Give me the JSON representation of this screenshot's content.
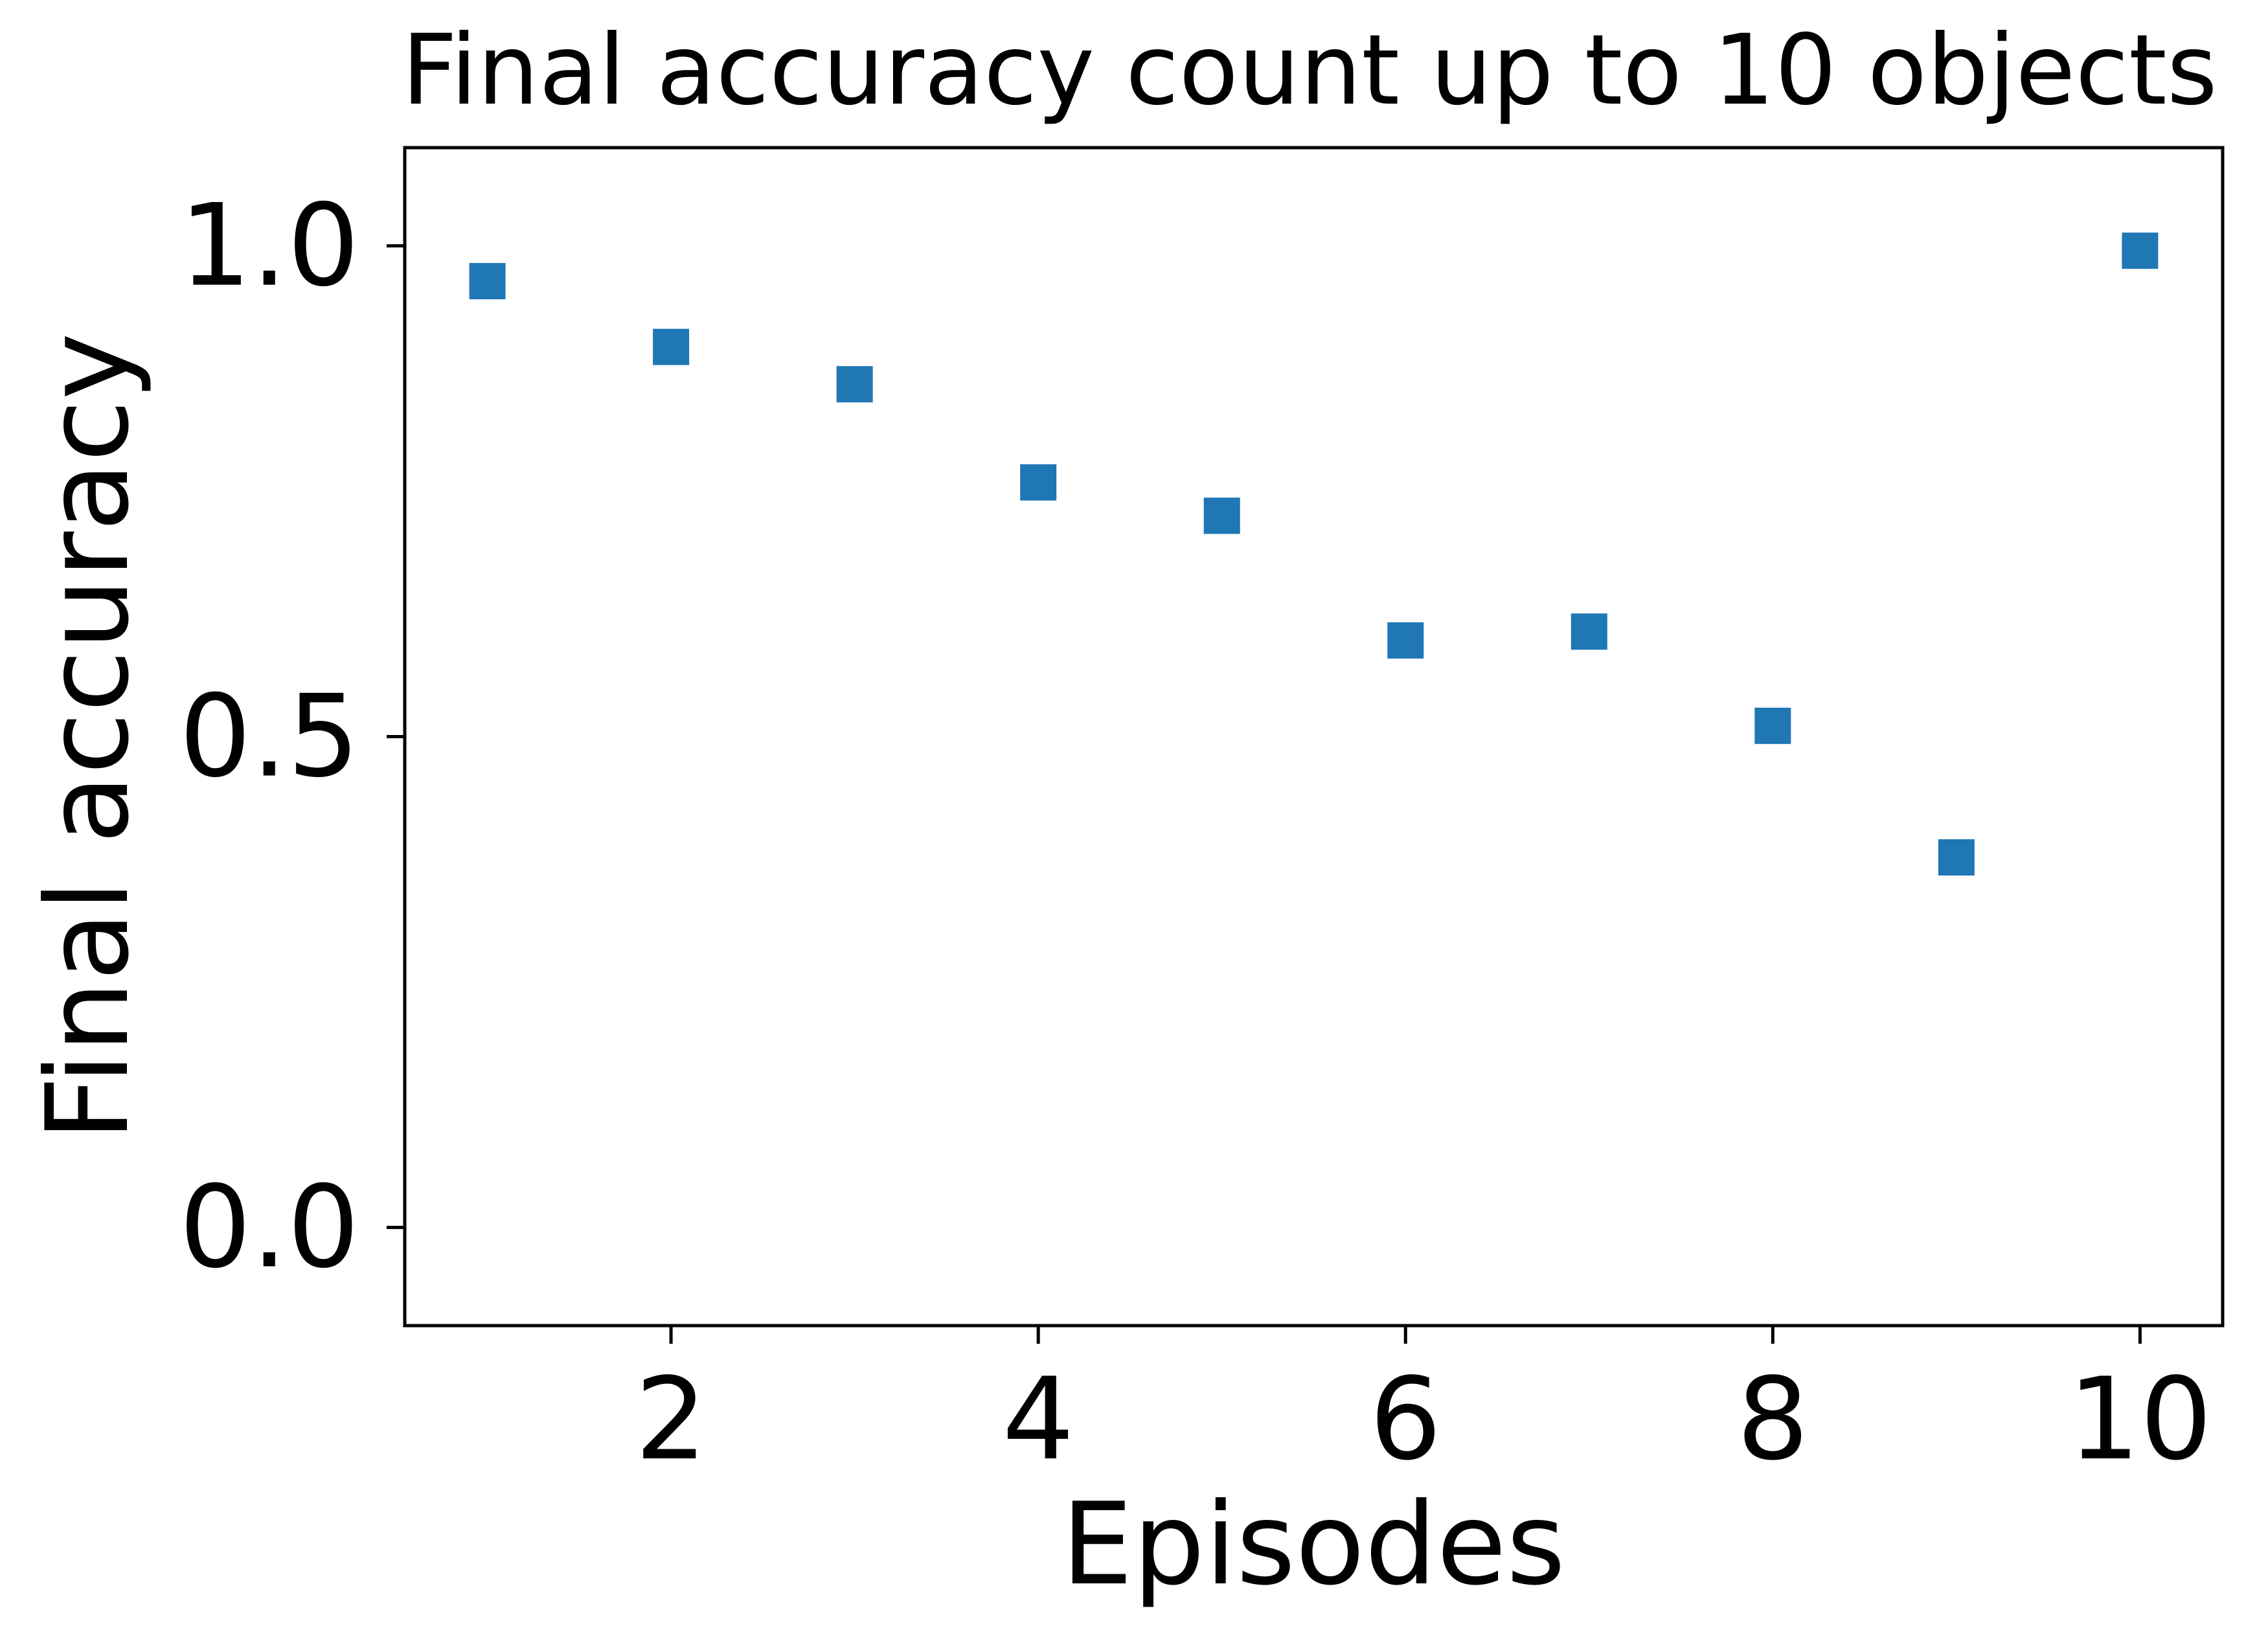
{
  "chart_data": {
    "type": "scatter",
    "title": "Final accuracy count up to 10 objects",
    "xlabel": "Episodes",
    "ylabel": "Final accuracy",
    "xlim": [
      0.55,
      10.45
    ],
    "ylim": [
      -0.1,
      1.1
    ],
    "xticks": [
      2,
      4,
      6,
      8,
      10
    ],
    "yticks": [
      0.0,
      0.5,
      1.0
    ],
    "xtick_labels": [
      "2",
      "4",
      "6",
      "8",
      "10"
    ],
    "ytick_labels": [
      "0.0",
      "0.5",
      "1.0"
    ],
    "grid": false,
    "marker": "square",
    "series": [
      {
        "color": "#1f77b4",
        "x": [
          1,
          2,
          3,
          4,
          5,
          6,
          7,
          8,
          9,
          10
        ],
        "y": [
          0.964,
          0.897,
          0.859,
          0.759,
          0.725,
          0.598,
          0.607,
          0.511,
          0.377,
          0.995
        ]
      }
    ]
  }
}
